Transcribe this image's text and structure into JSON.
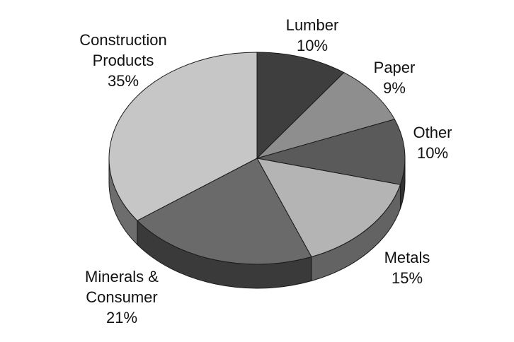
{
  "chart_data": {
    "type": "pie",
    "title": "",
    "three_d": true,
    "start_angle_deg": 0,
    "direction": "clockwise",
    "slices": [
      {
        "label_lines": [
          "Lumber"
        ],
        "value": 10,
        "value_text": "10%",
        "color": "#3e3e3e"
      },
      {
        "label_lines": [
          "Paper"
        ],
        "value": 9,
        "value_text": "9%",
        "color": "#8e8e8e"
      },
      {
        "label_lines": [
          "Other"
        ],
        "value": 10,
        "value_text": "10%",
        "color": "#5a5a5a"
      },
      {
        "label_lines": [
          "Metals"
        ],
        "value": 15,
        "value_text": "15%",
        "color": "#b4b4b4"
      },
      {
        "label_lines": [
          "Minerals &",
          "Consumer"
        ],
        "value": 21,
        "value_text": "21%",
        "color": "#6a6a6a"
      },
      {
        "label_lines": [
          "Construction",
          "Products"
        ],
        "value": 35,
        "value_text": "35%",
        "color": "#c6c6c6"
      }
    ]
  }
}
